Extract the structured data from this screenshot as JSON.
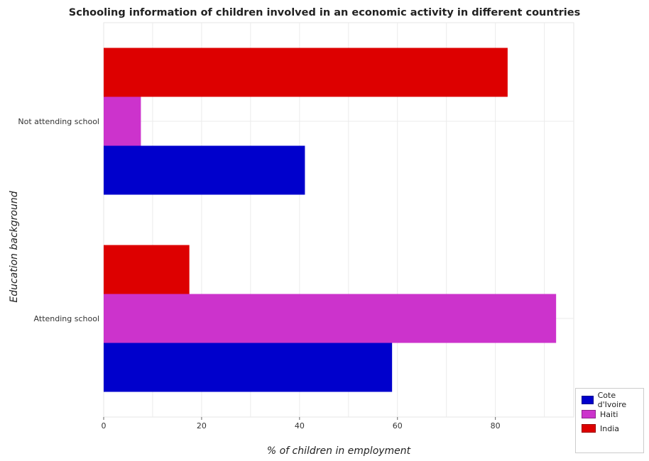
{
  "chart_data": {
    "type": "bar",
    "orientation": "horizontal",
    "title": "Schooling information of children involved in an economic activity in different countries",
    "xlabel": "% of children in employment",
    "ylabel": "Education background",
    "categories": [
      "Not attending school",
      "Attending school"
    ],
    "series": [
      {
        "name": "Cote d'Ivoire",
        "color": "#0000cc",
        "values": [
          41.1,
          58.9
        ]
      },
      {
        "name": "Haiti",
        "color": "#cc33cc",
        "values": [
          7.6,
          92.4
        ]
      },
      {
        "name": "India",
        "color": "#dd0000",
        "values": [
          82.5,
          17.5
        ]
      }
    ],
    "xlim": [
      0,
      96
    ],
    "xticks": [
      0,
      20,
      40,
      60,
      80
    ],
    "grid": true,
    "legend_position": "bottom-right"
  }
}
